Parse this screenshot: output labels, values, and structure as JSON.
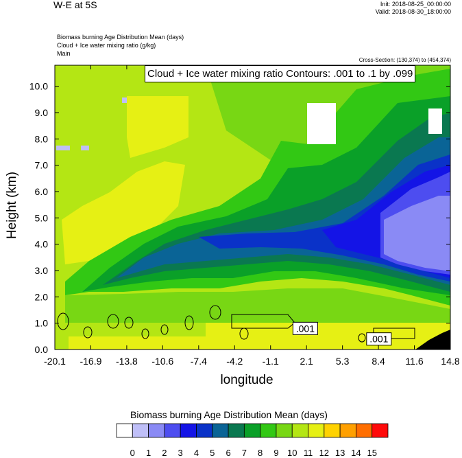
{
  "header": {
    "title": "W-E at 5S",
    "init": "Init: 2018-08-25_00:00:00",
    "valid": "Valid: 2018-08-30_18:00:00",
    "field1": "Biomass burning Age Distribution Mean   (days)",
    "field2": "Cloud + Ice water mixing ratio   (g/kg)",
    "field3": "Main",
    "cross_section": "Cross-Section: (130,374) to (454,374)"
  },
  "chart_data": {
    "type": "heatmap",
    "title": "W-E at 5S",
    "xlabel": "longitude",
    "ylabel": "Height (km)",
    "xlim": [
      -20.1,
      14.8
    ],
    "ylim": [
      0.0,
      10.8
    ],
    "x_ticks": [
      "-20.1",
      "-16.9",
      "-13.8",
      "-10.6",
      "-7.4",
      "-4.2",
      "-1.1",
      "2.1",
      "5.3",
      "8.4",
      "11.6",
      "14.8"
    ],
    "y_ticks": [
      "0.0",
      "1.0",
      "2.0",
      "3.0",
      "4.0",
      "5.0",
      "6.0",
      "7.0",
      "8.0",
      "9.0",
      "10.0"
    ],
    "contour_banner": "Cloud + Ice water mixing ratio Contours: .001 to .1 by .099",
    "contour_labels": [
      {
        "text": ".001",
        "lon": 2.0,
        "height": 0.8
      },
      {
        "text": ".001",
        "lon": 8.5,
        "height": 0.4
      }
    ],
    "colorbar": {
      "title": "Biomass burning Age Distribution Mean  (days)",
      "labels": [
        "0",
        "1",
        "2",
        "3",
        "4",
        "5",
        "6",
        "7",
        "8",
        "9",
        "10",
        "11",
        "12",
        "13",
        "14",
        "15"
      ],
      "colors": [
        "#ffffff",
        "#bfbff8",
        "#8a8af5",
        "#4d4df0",
        "#1414e6",
        "#0a32c8",
        "#0a6496",
        "#0a7850",
        "#0aa028",
        "#32c814",
        "#78d714",
        "#b4e614",
        "#e6f014",
        "#ffd200",
        "#ffa000",
        "#ff6e00",
        "#ff0a0a"
      ]
    },
    "field_colors": {
      "c0": "#ffffff",
      "c3": "#4d4df0",
      "c4": "#1414e6",
      "c5": "#0a32c8",
      "c6": "#0a6496",
      "c7": "#0a7850",
      "c8": "#0aa028",
      "c9": "#32c814",
      "c10": "#78d714",
      "c11": "#b4e614",
      "c12": "#e6f014",
      "c1": "#bfbff8",
      "c2": "#8a8af5"
    }
  }
}
